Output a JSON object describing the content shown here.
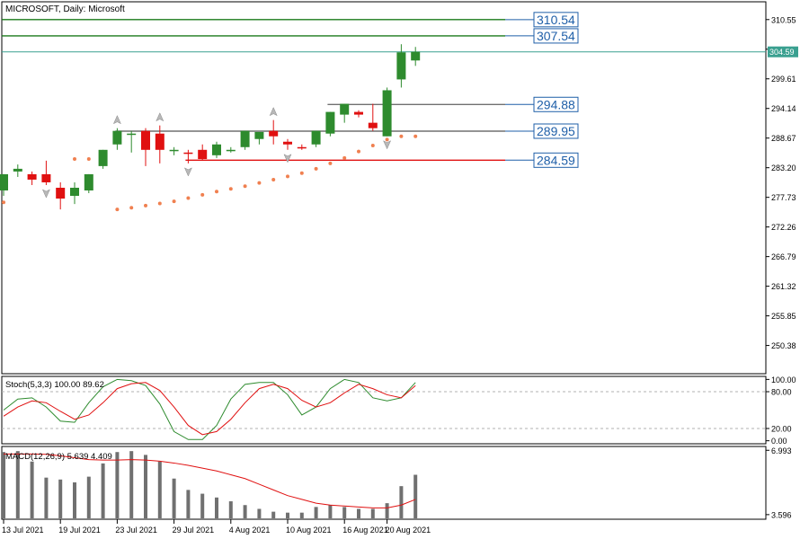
{
  "colors": {
    "bull": "#2e8b2e",
    "bear": "#e01010",
    "sar": "#f08050",
    "stoch_main": "#2e8b2e",
    "stoch_signal": "#e01010",
    "macd_hist": "#707070",
    "macd_signal": "#e01010",
    "line_green": "#1a7a1a",
    "line_red": "#e01010",
    "line_gray": "#707070",
    "current_price_line": "#3aa090",
    "label_box": "#1f5fa8"
  },
  "chart_data": [
    {
      "type": "candlestick",
      "title": "MICROSOFT, Daily:  Microsoft",
      "ylim": [
        245.5,
        313.5
      ],
      "ytick_labels": [
        "310.55",
        "305.08",
        "299.61",
        "294.14",
        "288.67",
        "283.20",
        "277.73",
        "272.26",
        "266.79",
        "261.32",
        "255.85",
        "250.38"
      ],
      "x_labels": [
        "13 Jul 2021",
        "19 Jul 2021",
        "23 Jul 2021",
        "29 Jul 2021",
        "4 Aug 2021",
        "10 Aug 2021",
        "16 Aug 2021",
        "20 Aug 2021"
      ],
      "x_label_bar_index": [
        0,
        4,
        8,
        12,
        16,
        20,
        24,
        27
      ],
      "current_price": "304.59",
      "candles": [
        {
          "o": 279.0,
          "h": 282.0,
          "l": 278.0,
          "c": 282.0
        },
        {
          "o": 282.5,
          "h": 283.8,
          "l": 281.5,
          "c": 283.0
        },
        {
          "o": 282.0,
          "h": 282.5,
          "l": 280.0,
          "c": 281.0
        },
        {
          "o": 282.0,
          "h": 284.5,
          "l": 280.0,
          "c": 280.5
        },
        {
          "o": 279.5,
          "h": 280.5,
          "l": 275.5,
          "c": 277.5
        },
        {
          "o": 278.0,
          "h": 280.5,
          "l": 276.5,
          "c": 279.5
        },
        {
          "o": 279.0,
          "h": 282.0,
          "l": 278.5,
          "c": 282.0
        },
        {
          "o": 283.5,
          "h": 286.5,
          "l": 283.0,
          "c": 286.5
        },
        {
          "o": 287.5,
          "h": 290.5,
          "l": 286.5,
          "c": 290.0
        },
        {
          "o": 289.5,
          "h": 290.0,
          "l": 286.0,
          "c": 289.5
        },
        {
          "o": 290.0,
          "h": 290.5,
          "l": 283.5,
          "c": 286.5
        },
        {
          "o": 289.5,
          "h": 291.0,
          "l": 284.0,
          "c": 286.5
        },
        {
          "o": 286.5,
          "h": 287.0,
          "l": 285.5,
          "c": 286.5
        },
        {
          "o": 286.0,
          "h": 286.5,
          "l": 284.0,
          "c": 285.8
        },
        {
          "o": 286.5,
          "h": 287.5,
          "l": 284.5,
          "c": 284.8
        },
        {
          "o": 285.5,
          "h": 288.0,
          "l": 285.0,
          "c": 287.5
        },
        {
          "o": 286.5,
          "h": 287.0,
          "l": 286.0,
          "c": 286.5
        },
        {
          "o": 287.0,
          "h": 290.0,
          "l": 286.5,
          "c": 290.0
        },
        {
          "o": 288.5,
          "h": 289.5,
          "l": 287.5,
          "c": 289.8
        },
        {
          "o": 290.0,
          "h": 292.0,
          "l": 287.5,
          "c": 289.0
        },
        {
          "o": 288.0,
          "h": 288.5,
          "l": 286.5,
          "c": 287.5
        },
        {
          "o": 287.0,
          "h": 287.5,
          "l": 286.5,
          "c": 286.8
        },
        {
          "o": 287.5,
          "h": 290.0,
          "l": 287.0,
          "c": 290.0
        },
        {
          "o": 289.5,
          "h": 293.5,
          "l": 289.0,
          "c": 293.5
        },
        {
          "o": 293.0,
          "h": 295.0,
          "l": 291.5,
          "c": 295.0
        },
        {
          "o": 293.5,
          "h": 293.8,
          "l": 292.5,
          "c": 293.0
        },
        {
          "o": 291.5,
          "h": 295.0,
          "l": 290.0,
          "c": 290.5
        },
        {
          "o": 289.0,
          "h": 298.0,
          "l": 289.0,
          "c": 297.5
        },
        {
          "o": 299.5,
          "h": 306.0,
          "l": 298.0,
          "c": 304.5
        },
        {
          "o": 303.0,
          "h": 305.5,
          "l": 302.0,
          "c": 304.6
        }
      ],
      "parabolic_sar": [
        276.8,
        null,
        null,
        null,
        null,
        284.8,
        284.8,
        null,
        275.5,
        275.8,
        276.2,
        276.6,
        277.0,
        277.6,
        278.2,
        278.8,
        279.3,
        279.8,
        280.4,
        281.0,
        281.6,
        282.2,
        283.0,
        284.0,
        285.0,
        286.2,
        287.3,
        288.4,
        289.0,
        289.0
      ],
      "horizontal_lines": [
        {
          "label": "310.54",
          "value": 310.54,
          "color": "line_green"
        },
        {
          "label": "307.54",
          "value": 307.54,
          "color": "line_green"
        },
        {
          "label": "294.88",
          "value": 294.88,
          "color": "line_gray"
        },
        {
          "label": "289.95",
          "value": 289.95,
          "color": "line_gray"
        },
        {
          "label": "284.59",
          "value": 284.59,
          "color": "line_red"
        }
      ],
      "fractals_up": [
        8,
        11,
        19
      ],
      "fractals_down": [
        3,
        13,
        20,
        27
      ]
    },
    {
      "type": "line",
      "legend": "Stoch(5,3,3) 100.00 89.62",
      "ylim": [
        -2,
        102
      ],
      "ytick_labels": [
        "100.00",
        "80.00",
        "20.00",
        "0.00"
      ],
      "levels": [
        80,
        20
      ],
      "series": [
        {
          "values": [
            50,
            68,
            70,
            55,
            32,
            30,
            62,
            88,
            100,
            98,
            90,
            60,
            15,
            2,
            2,
            25,
            68,
            92,
            95,
            95,
            75,
            42,
            55,
            85,
            100,
            95,
            70,
            65,
            70,
            95
          ]
        },
        {
          "values": [
            40,
            55,
            65,
            62,
            48,
            35,
            42,
            62,
            85,
            93,
            95,
            82,
            55,
            25,
            10,
            15,
            35,
            62,
            85,
            92,
            85,
            66,
            55,
            62,
            78,
            92,
            85,
            75,
            70,
            90
          ]
        }
      ]
    },
    {
      "type": "bar",
      "legend": "MACD(12,26,9) 5.639 4.409",
      "ylim": [
        3.4,
        7.1
      ],
      "ytick_labels": [
        "6.993",
        "3.596"
      ],
      "histogram": [
        6.9,
        6.95,
        6.4,
        5.55,
        5.45,
        5.3,
        5.6,
        6.3,
        6.9,
        6.95,
        6.75,
        6.4,
        5.5,
        4.9,
        4.7,
        4.5,
        4.3,
        4.1,
        3.9,
        3.75,
        3.7,
        3.7,
        4.0,
        4.1,
        4.0,
        3.9,
        3.9,
        4.2,
        5.1,
        5.7
      ],
      "signal": [
        6.8,
        6.8,
        6.8,
        6.78,
        6.7,
        6.6,
        6.5,
        6.48,
        6.48,
        6.5,
        6.48,
        6.42,
        6.32,
        6.2,
        6.05,
        5.9,
        5.7,
        5.5,
        5.2,
        4.9,
        4.6,
        4.4,
        4.2,
        4.1,
        4.05,
        4.0,
        3.95,
        3.95,
        4.1,
        4.4
      ]
    }
  ]
}
